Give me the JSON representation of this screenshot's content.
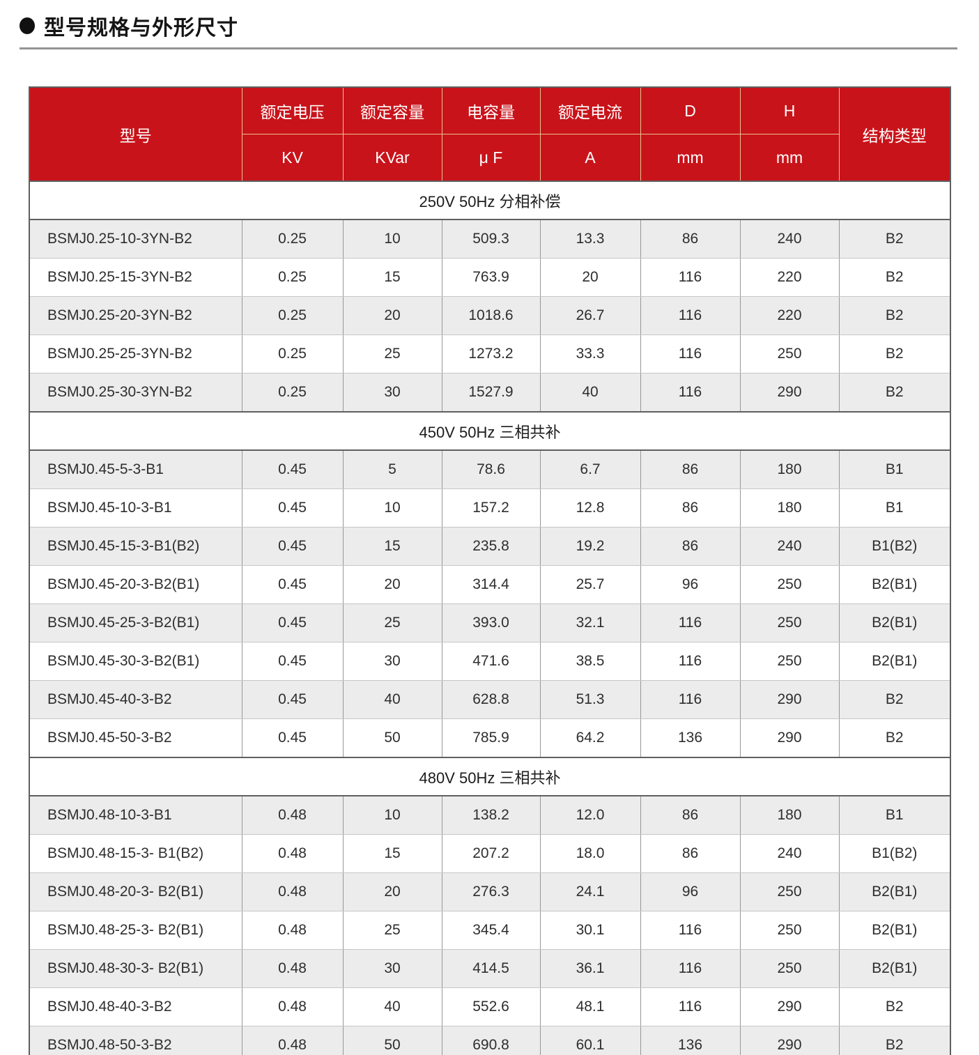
{
  "page": {
    "title": "型号规格与外形尺寸",
    "title_bullet": "●"
  },
  "colors": {
    "header_bg": "#c9131a",
    "header_grid_line": "#eac28e",
    "row_shade": "#ececec",
    "table_border": "#5f5f5f"
  },
  "table": {
    "columns": [
      {
        "label": "型号",
        "unit": ""
      },
      {
        "label": "额定电压",
        "unit": "KV"
      },
      {
        "label": "额定容量",
        "unit": "KVar"
      },
      {
        "label": "电容量",
        "unit": "μ F"
      },
      {
        "label": "额定电流",
        "unit": "A"
      },
      {
        "label": "D",
        "unit": "mm"
      },
      {
        "label": "H",
        "unit": "mm"
      },
      {
        "label": "结构类型",
        "unit": ""
      }
    ],
    "sections": [
      {
        "label": "250V 50Hz 分相补偿",
        "rows": [
          [
            "BSMJ0.25-10-3YN-B2",
            "0.25",
            "10",
            "509.3",
            "13.3",
            "86",
            "240",
            "B2"
          ],
          [
            "BSMJ0.25-15-3YN-B2",
            "0.25",
            "15",
            "763.9",
            "20",
            "116",
            "220",
            "B2"
          ],
          [
            "BSMJ0.25-20-3YN-B2",
            "0.25",
            "20",
            "1018.6",
            "26.7",
            "116",
            "220",
            "B2"
          ],
          [
            "BSMJ0.25-25-3YN-B2",
            "0.25",
            "25",
            "1273.2",
            "33.3",
            "116",
            "250",
            "B2"
          ],
          [
            "BSMJ0.25-30-3YN-B2",
            "0.25",
            "30",
            "1527.9",
            "40",
            "116",
            "290",
            "B2"
          ]
        ]
      },
      {
        "label": "450V 50Hz 三相共补",
        "rows": [
          [
            "BSMJ0.45-5-3-B1",
            "0.45",
            "5",
            "78.6",
            "6.7",
            "86",
            "180",
            "B1"
          ],
          [
            "BSMJ0.45-10-3-B1",
            "0.45",
            "10",
            "157.2",
            "12.8",
            "86",
            "180",
            "B1"
          ],
          [
            "BSMJ0.45-15-3-B1(B2)",
            "0.45",
            "15",
            "235.8",
            "19.2",
            "86",
            "240",
            "B1(B2)"
          ],
          [
            "BSMJ0.45-20-3-B2(B1)",
            "0.45",
            "20",
            "314.4",
            "25.7",
            "96",
            "250",
            "B2(B1)"
          ],
          [
            "BSMJ0.45-25-3-B2(B1)",
            "0.45",
            "25",
            "393.0",
            "32.1",
            "116",
            "250",
            "B2(B1)"
          ],
          [
            "BSMJ0.45-30-3-B2(B1)",
            "0.45",
            "30",
            "471.6",
            "38.5",
            "116",
            "250",
            "B2(B1)"
          ],
          [
            "BSMJ0.45-40-3-B2",
            "0.45",
            "40",
            "628.8",
            "51.3",
            "116",
            "290",
            "B2"
          ],
          [
            "BSMJ0.45-50-3-B2",
            "0.45",
            "50",
            "785.9",
            "64.2",
            "136",
            "290",
            "B2"
          ]
        ]
      },
      {
        "label": "480V 50Hz 三相共补",
        "rows": [
          [
            "BSMJ0.48-10-3-B1",
            "0.48",
            "10",
            "138.2",
            "12.0",
            "86",
            "180",
            "B1"
          ],
          [
            "BSMJ0.48-15-3- B1(B2)",
            "0.48",
            "15",
            "207.2",
            "18.0",
            "86",
            "240",
            "B1(B2)"
          ],
          [
            "BSMJ0.48-20-3- B2(B1)",
            "0.48",
            "20",
            "276.3",
            "24.1",
            "96",
            "250",
            "B2(B1)"
          ],
          [
            "BSMJ0.48-25-3- B2(B1)",
            "0.48",
            "25",
            "345.4",
            "30.1",
            "116",
            "250",
            "B2(B1)"
          ],
          [
            "BSMJ0.48-30-3- B2(B1)",
            "0.48",
            "30",
            "414.5",
            "36.1",
            "116",
            "250",
            "B2(B1)"
          ],
          [
            "BSMJ0.48-40-3-B2",
            "0.48",
            "40",
            "552.6",
            "48.1",
            "116",
            "290",
            "B2"
          ],
          [
            "BSMJ0.48-50-3-B2",
            "0.48",
            "50",
            "690.8",
            "60.1",
            "136",
            "290",
            "B2"
          ]
        ]
      }
    ]
  }
}
